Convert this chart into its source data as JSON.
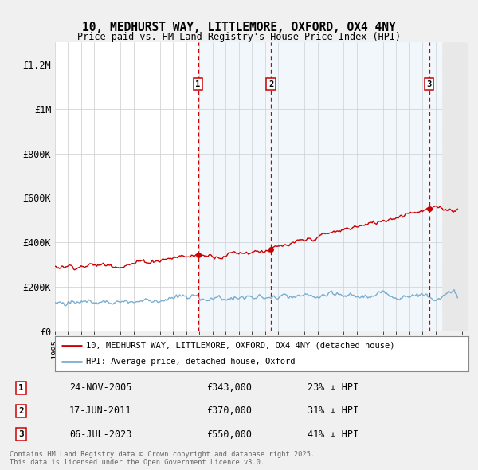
{
  "title_line1": "10, MEDHURST WAY, LITTLEMORE, OXFORD, OX4 4NY",
  "title_line2": "Price paid vs. HM Land Registry's House Price Index (HPI)",
  "ylabel_ticks": [
    "£0",
    "£200K",
    "£400K",
    "£600K",
    "£800K",
    "£1M",
    "£1.2M"
  ],
  "ytick_values": [
    0,
    200000,
    400000,
    600000,
    800000,
    1000000,
    1200000
  ],
  "ylim": [
    0,
    1300000
  ],
  "xlim_start": 1995.0,
  "xlim_end": 2026.5,
  "red_color": "#cc0000",
  "blue_color": "#7aadcf",
  "bg_color": "#f0f0f0",
  "plot_bg": "#ffffff",
  "grid_color": "#cccccc",
  "transaction_vline_color": "#cc0000",
  "shade_color": "#cce0f0",
  "transactions": [
    {
      "num": 1,
      "date_label": "24-NOV-2005",
      "price_label": "£343,000",
      "pct_label": "23% ↓ HPI",
      "year": 2005.9
    },
    {
      "num": 2,
      "date_label": "17-JUN-2011",
      "price_label": "£370,000",
      "pct_label": "31% ↓ HPI",
      "year": 2011.46
    },
    {
      "num": 3,
      "date_label": "06-JUL-2023",
      "price_label": "£550,000",
      "pct_label": "41% ↓ HPI",
      "year": 2023.51
    }
  ],
  "legend_red_label": "10, MEDHURST WAY, LITTLEMORE, OXFORD, OX4 4NY (detached house)",
  "legend_blue_label": "HPI: Average price, detached house, Oxford",
  "footer_text": "Contains HM Land Registry data © Crown copyright and database right 2025.\nThis data is licensed under the Open Government Licence v3.0."
}
